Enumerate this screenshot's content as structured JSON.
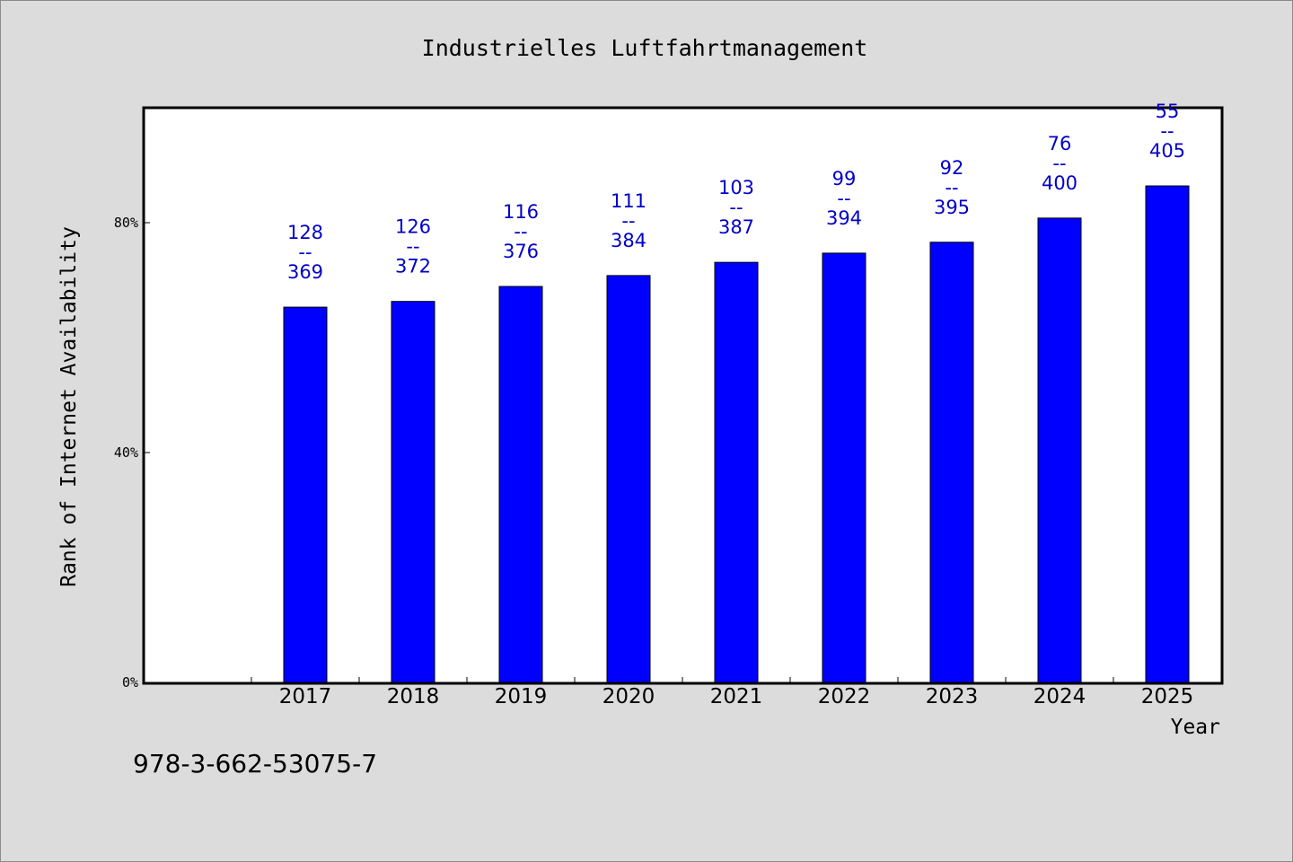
{
  "chart_data": {
    "type": "bar",
    "title": "Industrielles Luftfahrtmanagement",
    "xlabel": "Year",
    "ylabel": "Rank of Internet Availability",
    "categories": [
      "2017",
      "2018",
      "2019",
      "2020",
      "2021",
      "2022",
      "2023",
      "2024",
      "2025"
    ],
    "values": [
      65.3,
      66.3,
      68.9,
      70.8,
      73.1,
      74.7,
      76.6,
      80.8,
      86.4
    ],
    "value_labels": [
      [
        "128",
        "--",
        "369"
      ],
      [
        "126",
        "--",
        "372"
      ],
      [
        "116",
        "--",
        "376"
      ],
      [
        "111",
        "--",
        "384"
      ],
      [
        "103",
        "--",
        "387"
      ],
      [
        "99",
        "--",
        "394"
      ],
      [
        "92",
        "--",
        "395"
      ],
      [
        "76",
        "--",
        "400"
      ],
      [
        "55",
        "--",
        "405"
      ]
    ],
    "y_ticks": [
      0,
      40,
      80
    ],
    "y_tick_labels": [
      "0%",
      "40%",
      "80%"
    ],
    "ylim": [
      0,
      100
    ],
    "bar_color": "#0000ff",
    "label_color": "#0000c8",
    "grid": false,
    "legend": "none"
  },
  "footer": {
    "isbn": "978-3-662-53075-7"
  }
}
